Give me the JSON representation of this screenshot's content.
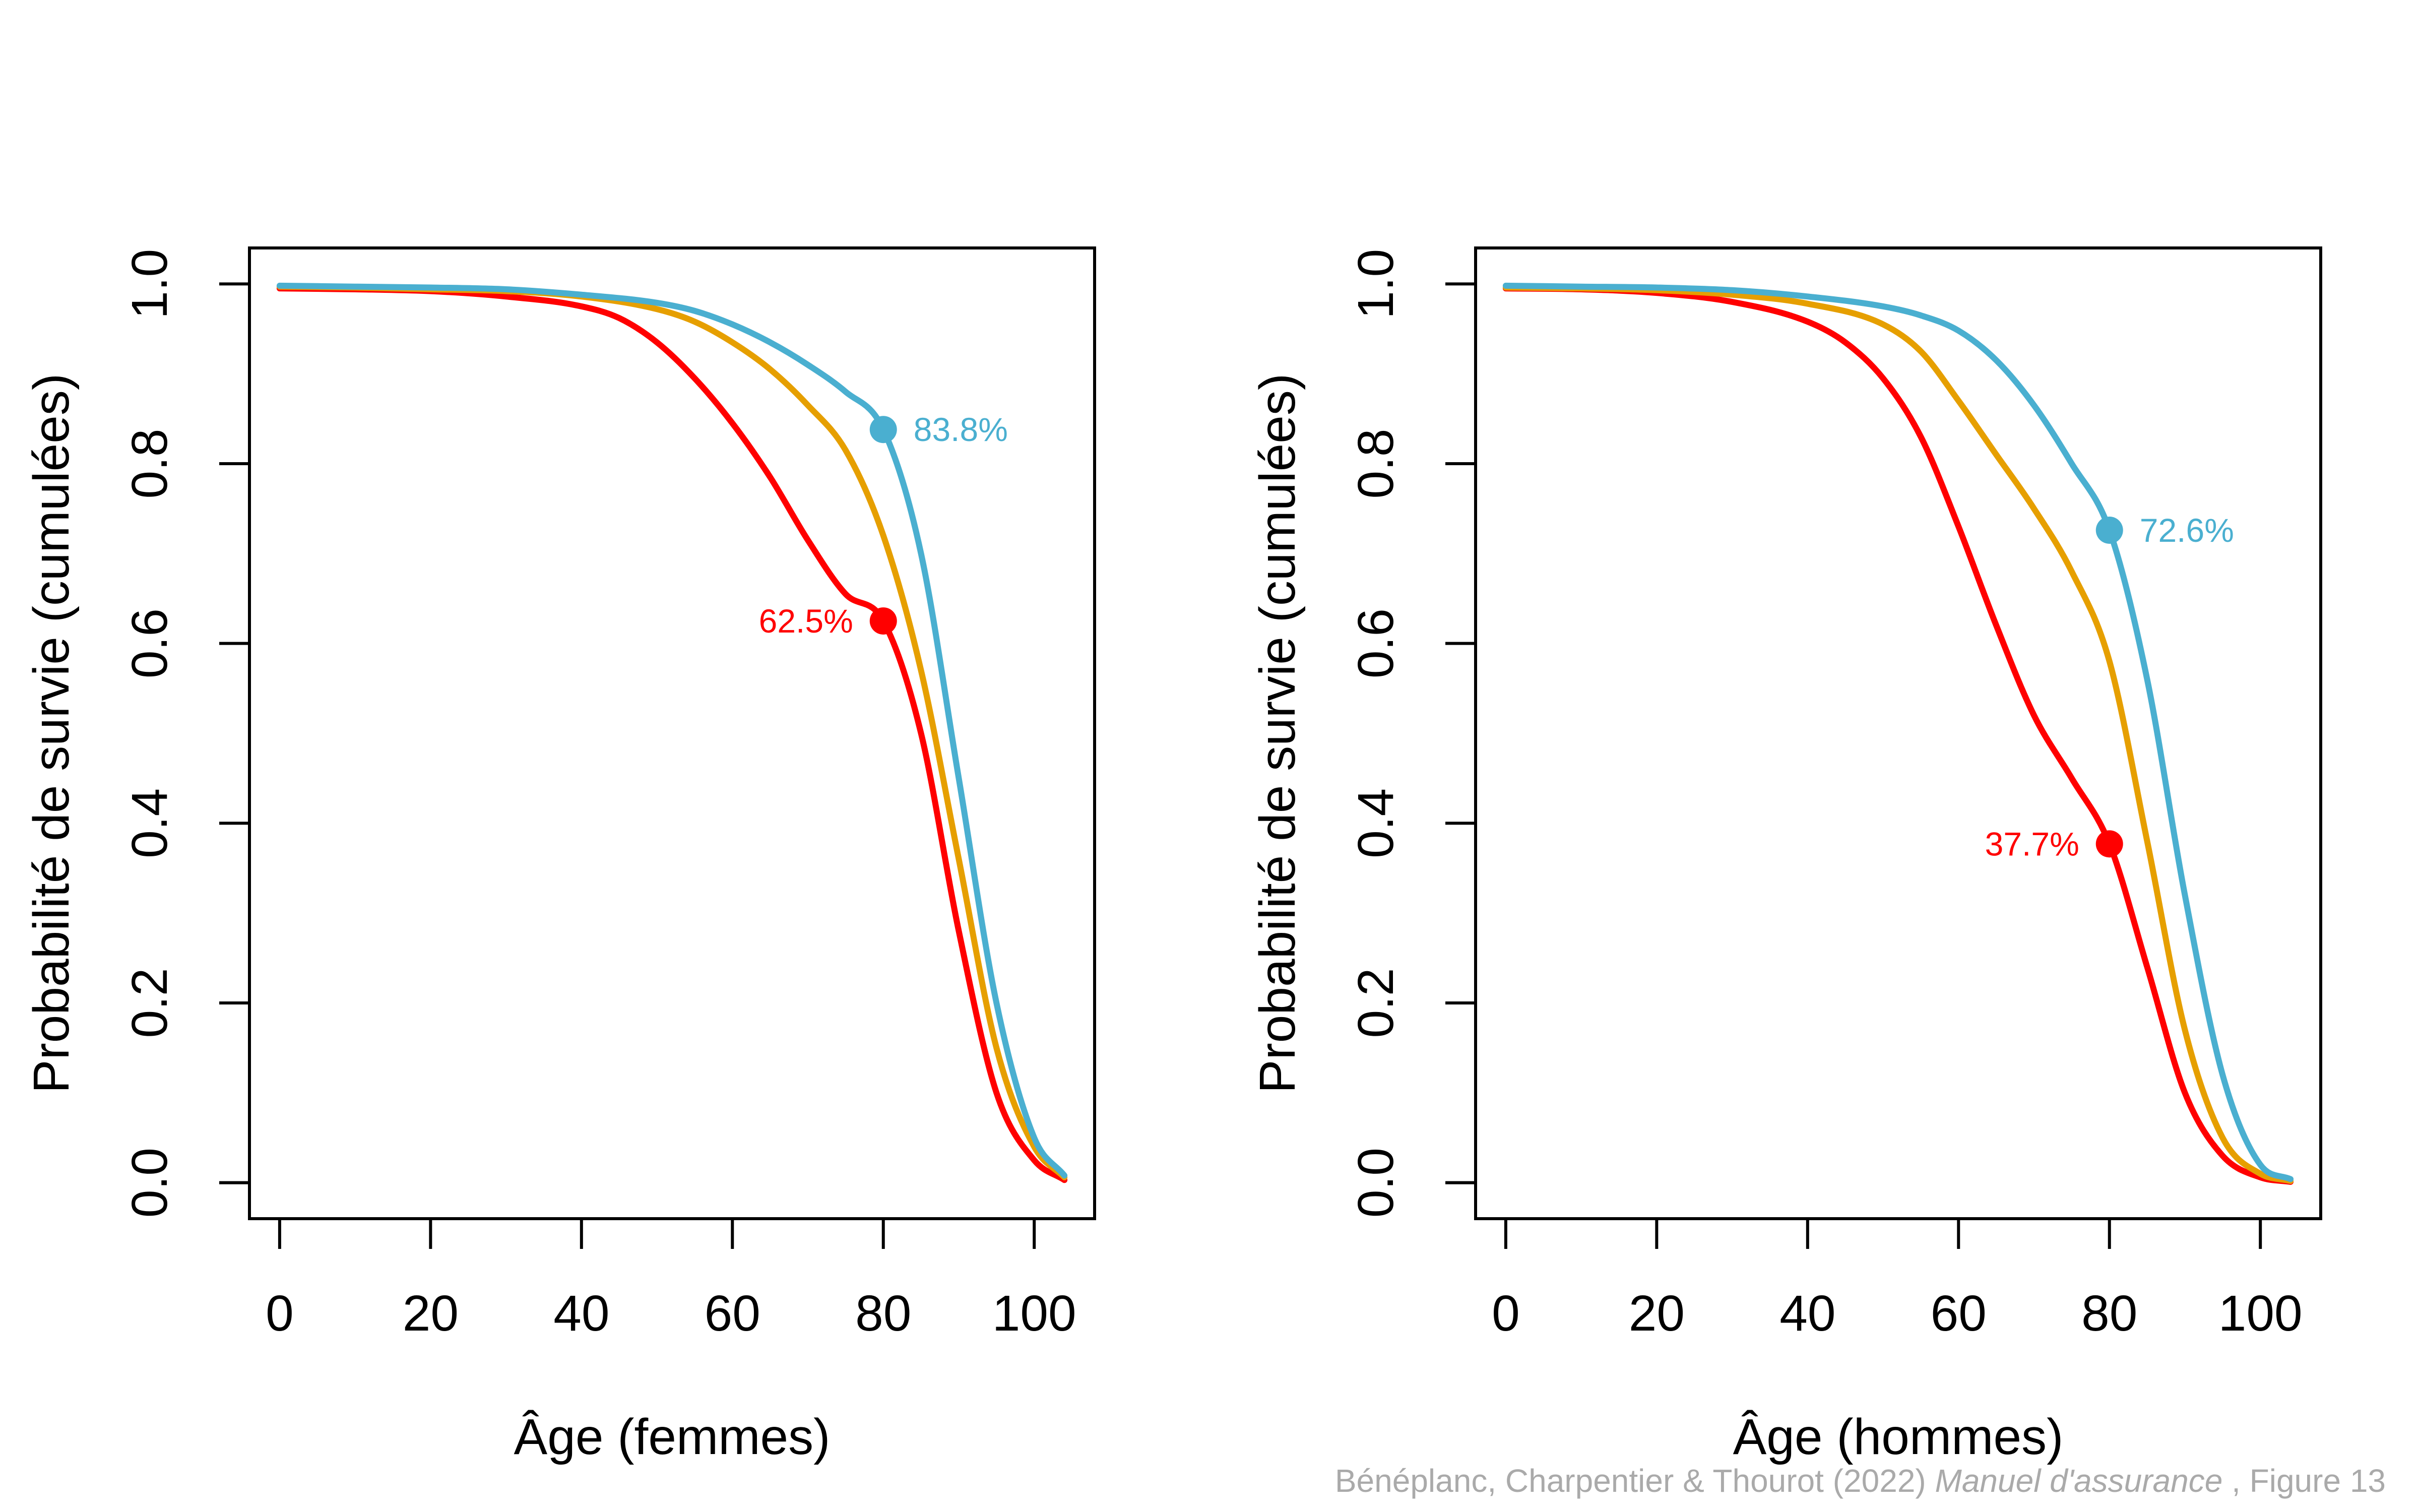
{
  "credit": {
    "authors": "Bénéplanc, Charpentier & Thourot (2022)",
    "book": "Manuel d'assurance",
    "figure": ", Figure 13"
  },
  "chart_data": [
    {
      "type": "line",
      "xlabel": "Âge (femmes)",
      "ylabel": "Probabilité de survie (cumulées)",
      "xlim": [
        -4,
        108
      ],
      "ylim": [
        -0.04,
        1.04
      ],
      "xticks": [
        "0",
        "20",
        "40",
        "60",
        "80",
        "100"
      ],
      "yticks": [
        "0.0",
        "0.2",
        "0.4",
        "0.6",
        "0.8",
        "1.0"
      ],
      "grid": false,
      "series": [
        {
          "color": "#FF0000",
          "x": [
            0,
            10,
            20,
            30,
            40,
            45,
            50,
            55,
            60,
            65,
            70,
            75,
            80,
            85,
            90,
            95,
            100,
            104
          ],
          "y": [
            0.995,
            0.994,
            0.992,
            0.986,
            0.975,
            0.962,
            0.935,
            0.895,
            0.845,
            0.785,
            0.715,
            0.655,
            0.625,
            0.5,
            0.28,
            0.1,
            0.025,
            0.003
          ]
        },
        {
          "color": "#E69F00",
          "x": [
            0,
            10,
            20,
            30,
            40,
            50,
            55,
            60,
            65,
            70,
            75,
            80,
            85,
            90,
            95,
            100,
            104
          ],
          "y": [
            0.997,
            0.996,
            0.994,
            0.992,
            0.986,
            0.972,
            0.958,
            0.935,
            0.905,
            0.865,
            0.815,
            0.72,
            0.57,
            0.36,
            0.15,
            0.04,
            0.006
          ]
        },
        {
          "color": "#4AAFD0",
          "x": [
            0,
            10,
            20,
            30,
            40,
            50,
            55,
            60,
            65,
            70,
            75,
            80,
            85,
            90,
            95,
            100,
            104
          ],
          "y": [
            0.998,
            0.997,
            0.996,
            0.994,
            0.988,
            0.979,
            0.97,
            0.955,
            0.935,
            0.91,
            0.88,
            0.838,
            0.7,
            0.45,
            0.2,
            0.05,
            0.008
          ]
        }
      ],
      "annotations": [
        {
          "x": 80,
          "y": 0.838,
          "label": "83.8%",
          "color": "#4AAFD0",
          "side": "right"
        },
        {
          "x": 80,
          "y": 0.625,
          "label": "62.5%",
          "color": "#FF0000",
          "side": "left"
        }
      ]
    },
    {
      "type": "line",
      "xlabel": "Âge (hommes)",
      "ylabel": "Probabilité de survie (cumulées)",
      "xlim": [
        -4,
        108
      ],
      "ylim": [
        -0.04,
        1.04
      ],
      "xticks": [
        "0",
        "20",
        "40",
        "60",
        "80",
        "100"
      ],
      "yticks": [
        "0.0",
        "0.2",
        "0.4",
        "0.6",
        "0.8",
        "1.0"
      ],
      "grid": false,
      "series": [
        {
          "color": "#FF0000",
          "x": [
            0,
            10,
            20,
            30,
            40,
            45,
            50,
            55,
            60,
            65,
            70,
            75,
            80,
            85,
            90,
            95,
            100,
            104
          ],
          "y": [
            0.995,
            0.994,
            0.99,
            0.98,
            0.958,
            0.935,
            0.895,
            0.83,
            0.73,
            0.62,
            0.52,
            0.45,
            0.377,
            0.24,
            0.1,
            0.03,
            0.006,
            0.001
          ]
        },
        {
          "color": "#E69F00",
          "x": [
            0,
            10,
            20,
            30,
            40,
            50,
            55,
            60,
            65,
            70,
            75,
            80,
            85,
            90,
            95,
            100,
            104
          ],
          "y": [
            0.996,
            0.995,
            0.993,
            0.988,
            0.978,
            0.955,
            0.925,
            0.87,
            0.81,
            0.75,
            0.68,
            0.58,
            0.38,
            0.17,
            0.05,
            0.01,
            0.002
          ]
        },
        {
          "color": "#4AAFD0",
          "x": [
            0,
            10,
            20,
            30,
            40,
            50,
            55,
            60,
            65,
            70,
            75,
            80,
            85,
            90,
            95,
            100,
            104
          ],
          "y": [
            0.998,
            0.997,
            0.996,
            0.993,
            0.986,
            0.975,
            0.965,
            0.948,
            0.915,
            0.865,
            0.8,
            0.726,
            0.56,
            0.32,
            0.12,
            0.02,
            0.004
          ]
        }
      ],
      "annotations": [
        {
          "x": 80,
          "y": 0.726,
          "label": "72.6%",
          "color": "#4AAFD0",
          "side": "right"
        },
        {
          "x": 80,
          "y": 0.377,
          "label": "37.7%",
          "color": "#FF0000",
          "side": "left"
        }
      ]
    }
  ]
}
